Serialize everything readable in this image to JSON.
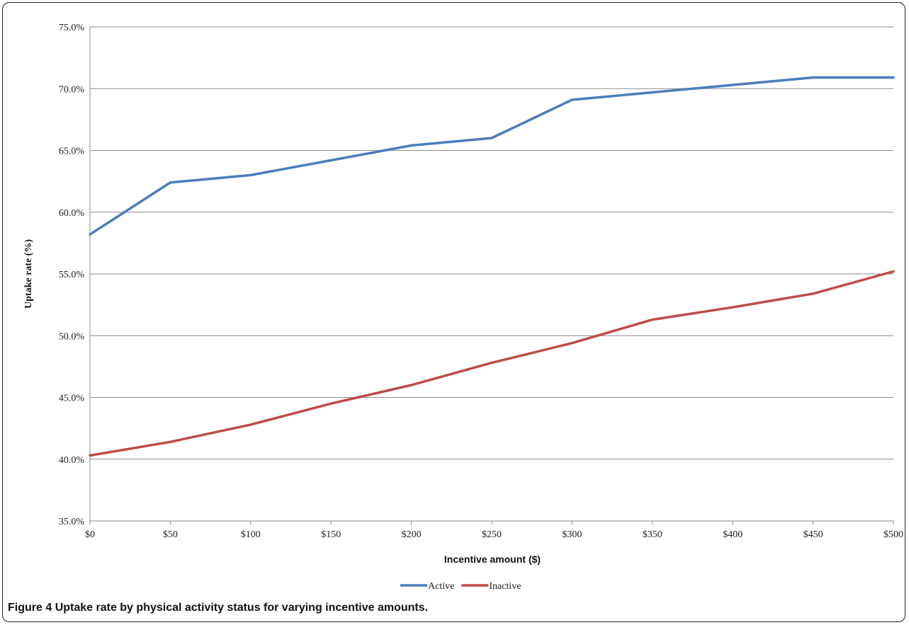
{
  "chart_data": {
    "type": "line",
    "xlabel": "Incentive amount ($)",
    "ylabel": "Uptake rate (%)",
    "x": [
      0,
      50,
      100,
      150,
      200,
      250,
      300,
      350,
      400,
      450,
      500
    ],
    "x_tick_labels": [
      "$0",
      "$50",
      "$100",
      "$150",
      "$200",
      "$250",
      "$300",
      "$350",
      "$400",
      "$450",
      "$500"
    ],
    "ylim": [
      35.0,
      75.0
    ],
    "y_ticks": [
      35.0,
      40.0,
      45.0,
      50.0,
      55.0,
      60.0,
      65.0,
      70.0,
      75.0
    ],
    "y_tick_labels": [
      "35.0%",
      "40.0%",
      "45.0%",
      "50.0%",
      "55.0%",
      "60.0%",
      "65.0%",
      "70.0%",
      "75.0%"
    ],
    "grid": "horizontal",
    "legend_position": "bottom",
    "series": [
      {
        "name": "Active",
        "color": "#4a7ebb",
        "values": [
          58.2,
          62.4,
          63.0,
          64.2,
          65.4,
          66.0,
          69.1,
          69.7,
          70.3,
          70.9,
          70.9
        ]
      },
      {
        "name": "Inactive",
        "color": "#be4b48",
        "values": [
          40.3,
          41.4,
          42.8,
          44.5,
          46.0,
          47.8,
          49.4,
          51.3,
          52.3,
          53.4,
          55.2
        ]
      }
    ]
  },
  "caption": {
    "label": "Figure 4",
    "text": "Uptake rate by physical activity status for varying incentive amounts."
  }
}
